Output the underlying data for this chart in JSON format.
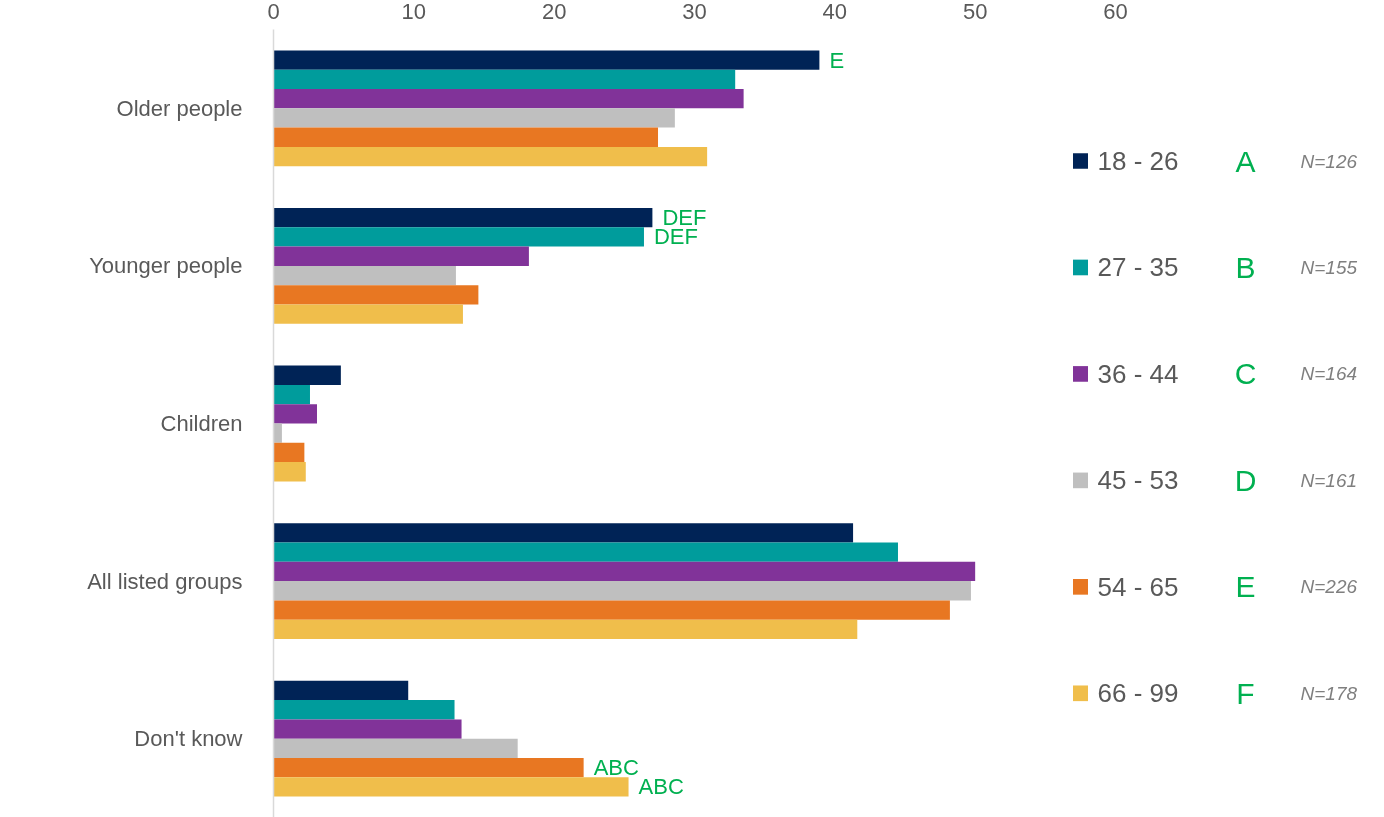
{
  "chart_data": {
    "type": "bar",
    "orientation": "horizontal",
    "categories": [
      "Older people",
      "Younger people",
      "Children",
      "All listed groups",
      "Don't know"
    ],
    "series": [
      {
        "name": "18 - 26",
        "color": "#002356",
        "values": [
          38.9,
          27.0,
          4.8,
          41.3,
          9.6
        ],
        "value_labels": [
          "E",
          "DEF",
          null,
          null,
          null
        ]
      },
      {
        "name": "27 - 35",
        "color": "#009c9c",
        "values": [
          32.9,
          26.4,
          2.6,
          44.5,
          12.9
        ],
        "value_labels": [
          null,
          "DEF",
          null,
          null,
          null
        ]
      },
      {
        "name": "36 - 44",
        "color": "#813399",
        "values": [
          33.5,
          18.2,
          3.1,
          50.0,
          13.4
        ]
      },
      {
        "name": "45 - 53",
        "color": "#bfbfbf",
        "values": [
          28.6,
          13.0,
          0.6,
          49.7,
          17.4
        ]
      },
      {
        "name": "54 - 65",
        "color": "#e87722",
        "values": [
          27.4,
          14.6,
          2.2,
          48.2,
          22.1
        ],
        "value_labels": [
          null,
          null,
          null,
          null,
          "ABC"
        ]
      },
      {
        "name": "66 - 99",
        "color": "#f0be4b",
        "values": [
          30.9,
          13.5,
          2.3,
          41.6,
          25.3
        ],
        "value_labels": [
          null,
          null,
          null,
          null,
          "ABC"
        ]
      }
    ],
    "xlim": [
      0,
      60
    ],
    "xticks": [
      0,
      10,
      20,
      30,
      40,
      50,
      60
    ],
    "grid": false,
    "legend": "right",
    "annotations": [
      "A",
      "N=126",
      "B",
      "N=155",
      "C",
      "N=164",
      "D",
      "N=161",
      "E",
      "N=226",
      "F",
      "N=178"
    ]
  }
}
